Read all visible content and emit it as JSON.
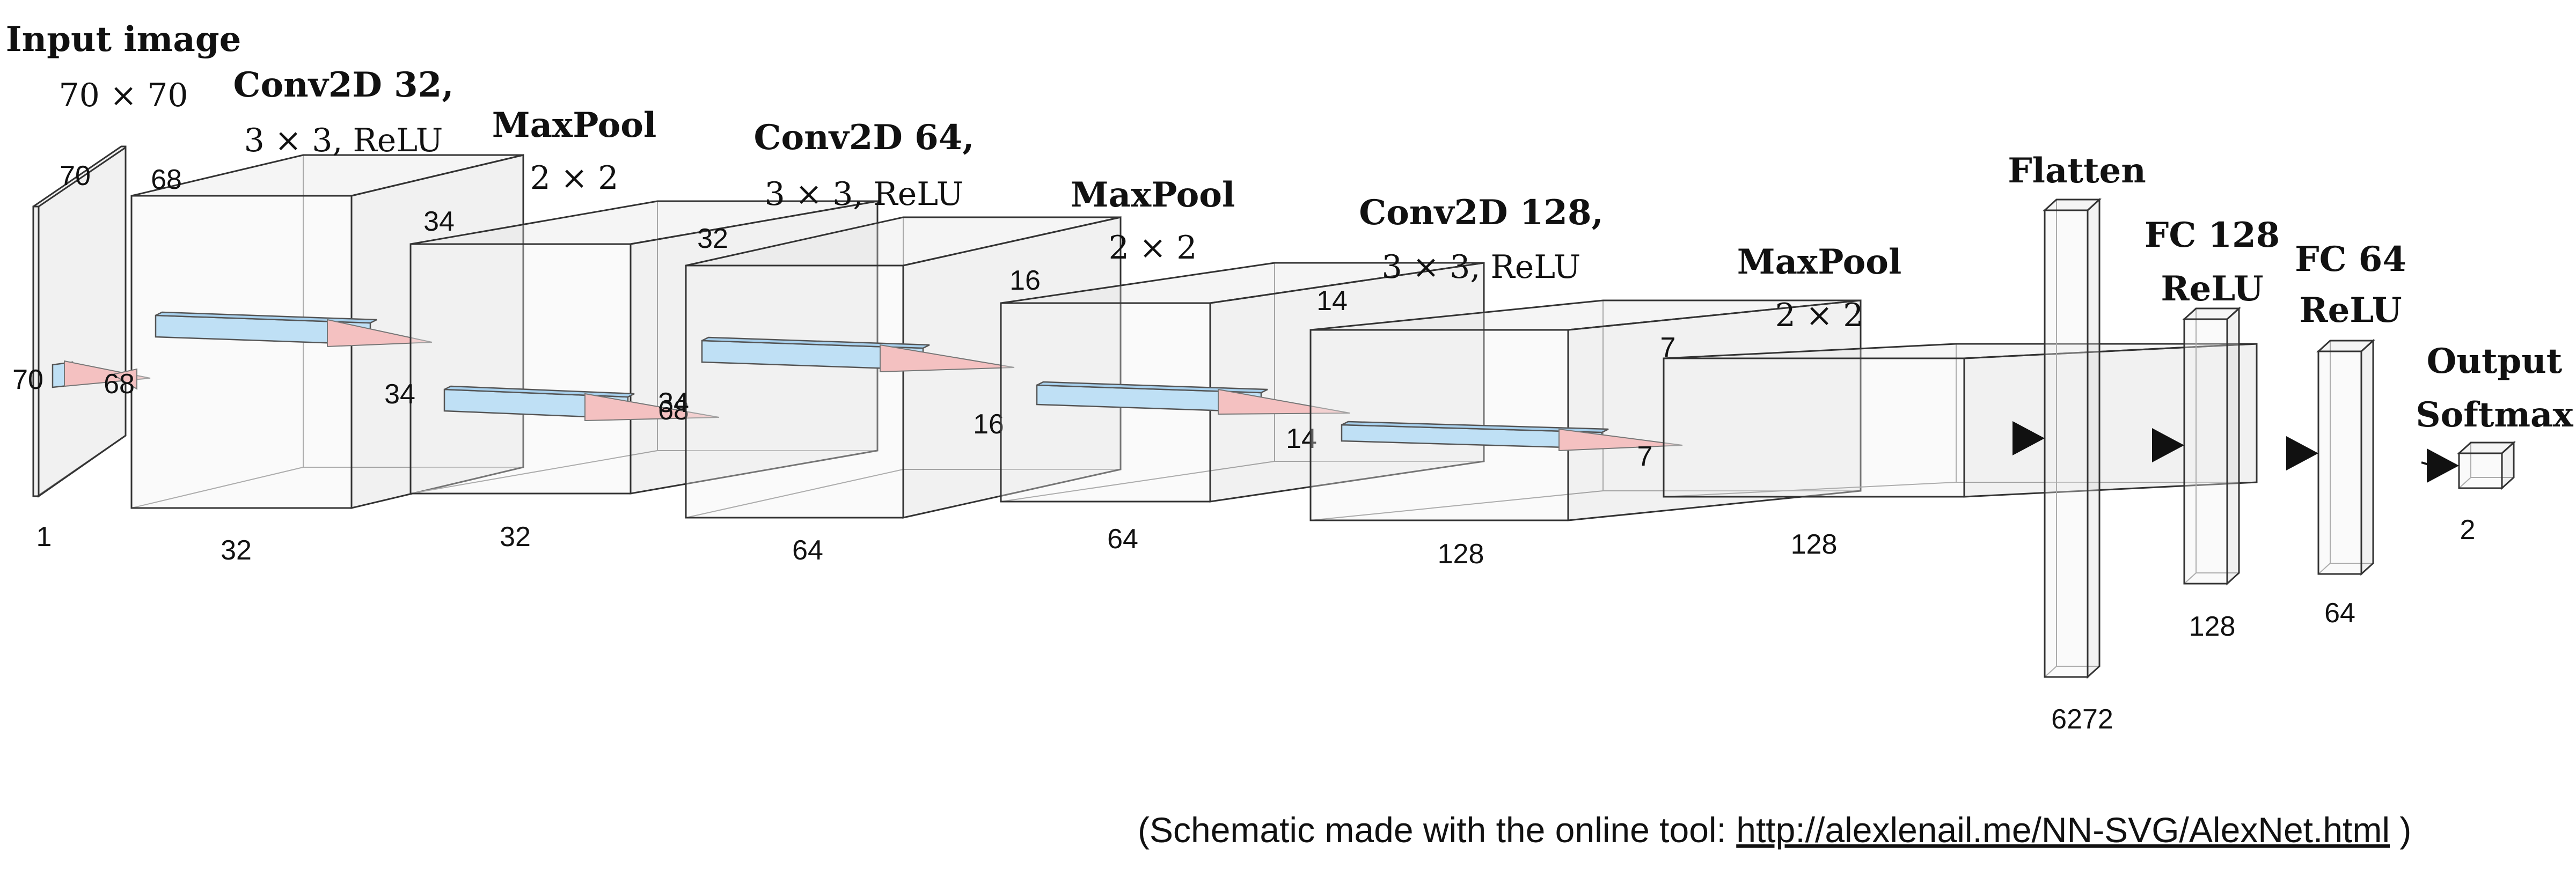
{
  "layers": [
    {
      "title": [
        "Input image",
        "70 × 70"
      ],
      "labels": [
        "70",
        "70",
        "1"
      ]
    },
    {
      "title": [
        "Conv2D 32,",
        "3 × 3, ReLU"
      ],
      "labels": [
        "68",
        "68",
        "32"
      ]
    },
    {
      "title": [
        "MaxPool",
        "2 × 2"
      ],
      "labels": [
        "34",
        "34",
        "32"
      ]
    },
    {
      "title": [
        "Conv2D 64,",
        "3 × 3, ReLU"
      ],
      "labels": [
        "32",
        "32",
        "64"
      ]
    },
    {
      "title": [
        "MaxPool",
        "2 × 2"
      ],
      "labels": [
        "16",
        "16",
        "64"
      ]
    },
    {
      "title": [
        "Conv2D 128,",
        "3 × 3, ReLU"
      ],
      "labels": [
        "14",
        "14",
        "128"
      ]
    },
    {
      "title": [
        "MaxPool",
        "2 × 2"
      ],
      "labels": [
        "7",
        "7",
        "128"
      ]
    },
    {
      "title": [
        "Flatten"
      ],
      "labels": [
        "6272"
      ]
    },
    {
      "title": [
        "FC 128",
        "ReLU"
      ],
      "labels": [
        "128"
      ]
    },
    {
      "title": [
        "FC 64",
        "ReLU"
      ],
      "labels": [
        "64"
      ]
    },
    {
      "title": [
        "Output",
        "Softmax"
      ],
      "labels": [
        "2"
      ]
    }
  ],
  "caption": {
    "prefix": "(Schematic made with the online tool: ",
    "link": "http://alexlenail.me/NN-SVG/AlexNet.html",
    "suffix": " )"
  }
}
